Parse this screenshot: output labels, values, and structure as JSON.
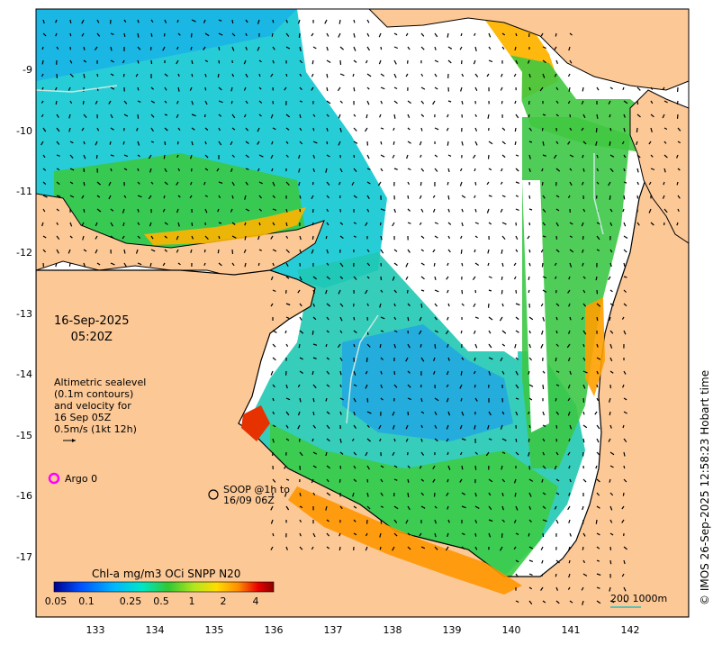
{
  "map": {
    "lon_ticks": [
      "133",
      "134",
      "135",
      "136",
      "137",
      "138",
      "139",
      "140",
      "141",
      "142"
    ],
    "lat_ticks": [
      "-9",
      "-10",
      "-11",
      "-12",
      "-13",
      "-14",
      "-15",
      "-16",
      "-17"
    ],
    "colors": {
      "land": "#fcc896",
      "no_data": "#ffffff",
      "coast": "#000000",
      "contour": "#c8e8e0"
    }
  },
  "annotations": {
    "date_line1": "16-Sep-2025",
    "date_line2": "05:20Z",
    "alti_line1": "Altimetric sealevel",
    "alti_line2": "(0.1m contours)",
    "alti_line3": "and velocity for",
    "alti_line4": "16 Sep 05Z",
    "alti_line5": "0.5m/s (1kt 12h)",
    "argo_label": "Argo 0",
    "soop_line1": "SOOP @1h to",
    "soop_line2": "16/09 06Z",
    "scale_label": "200  1000m",
    "credit": "© IMOS 26-Sep-2025 12:58:23 Hobart time"
  },
  "colorbar": {
    "title": "Chl-a mg/m3 OCi SNPP N20",
    "ticks": [
      "0.05",
      "0.1",
      "0.25",
      "0.5",
      "1",
      "2",
      "4"
    ],
    "colors": [
      "#00008c",
      "#0050ff",
      "#00b4ff",
      "#00e6c8",
      "#32c832",
      "#b4e61e",
      "#ffdc00",
      "#ff8c00",
      "#e60000",
      "#8c0000"
    ]
  }
}
